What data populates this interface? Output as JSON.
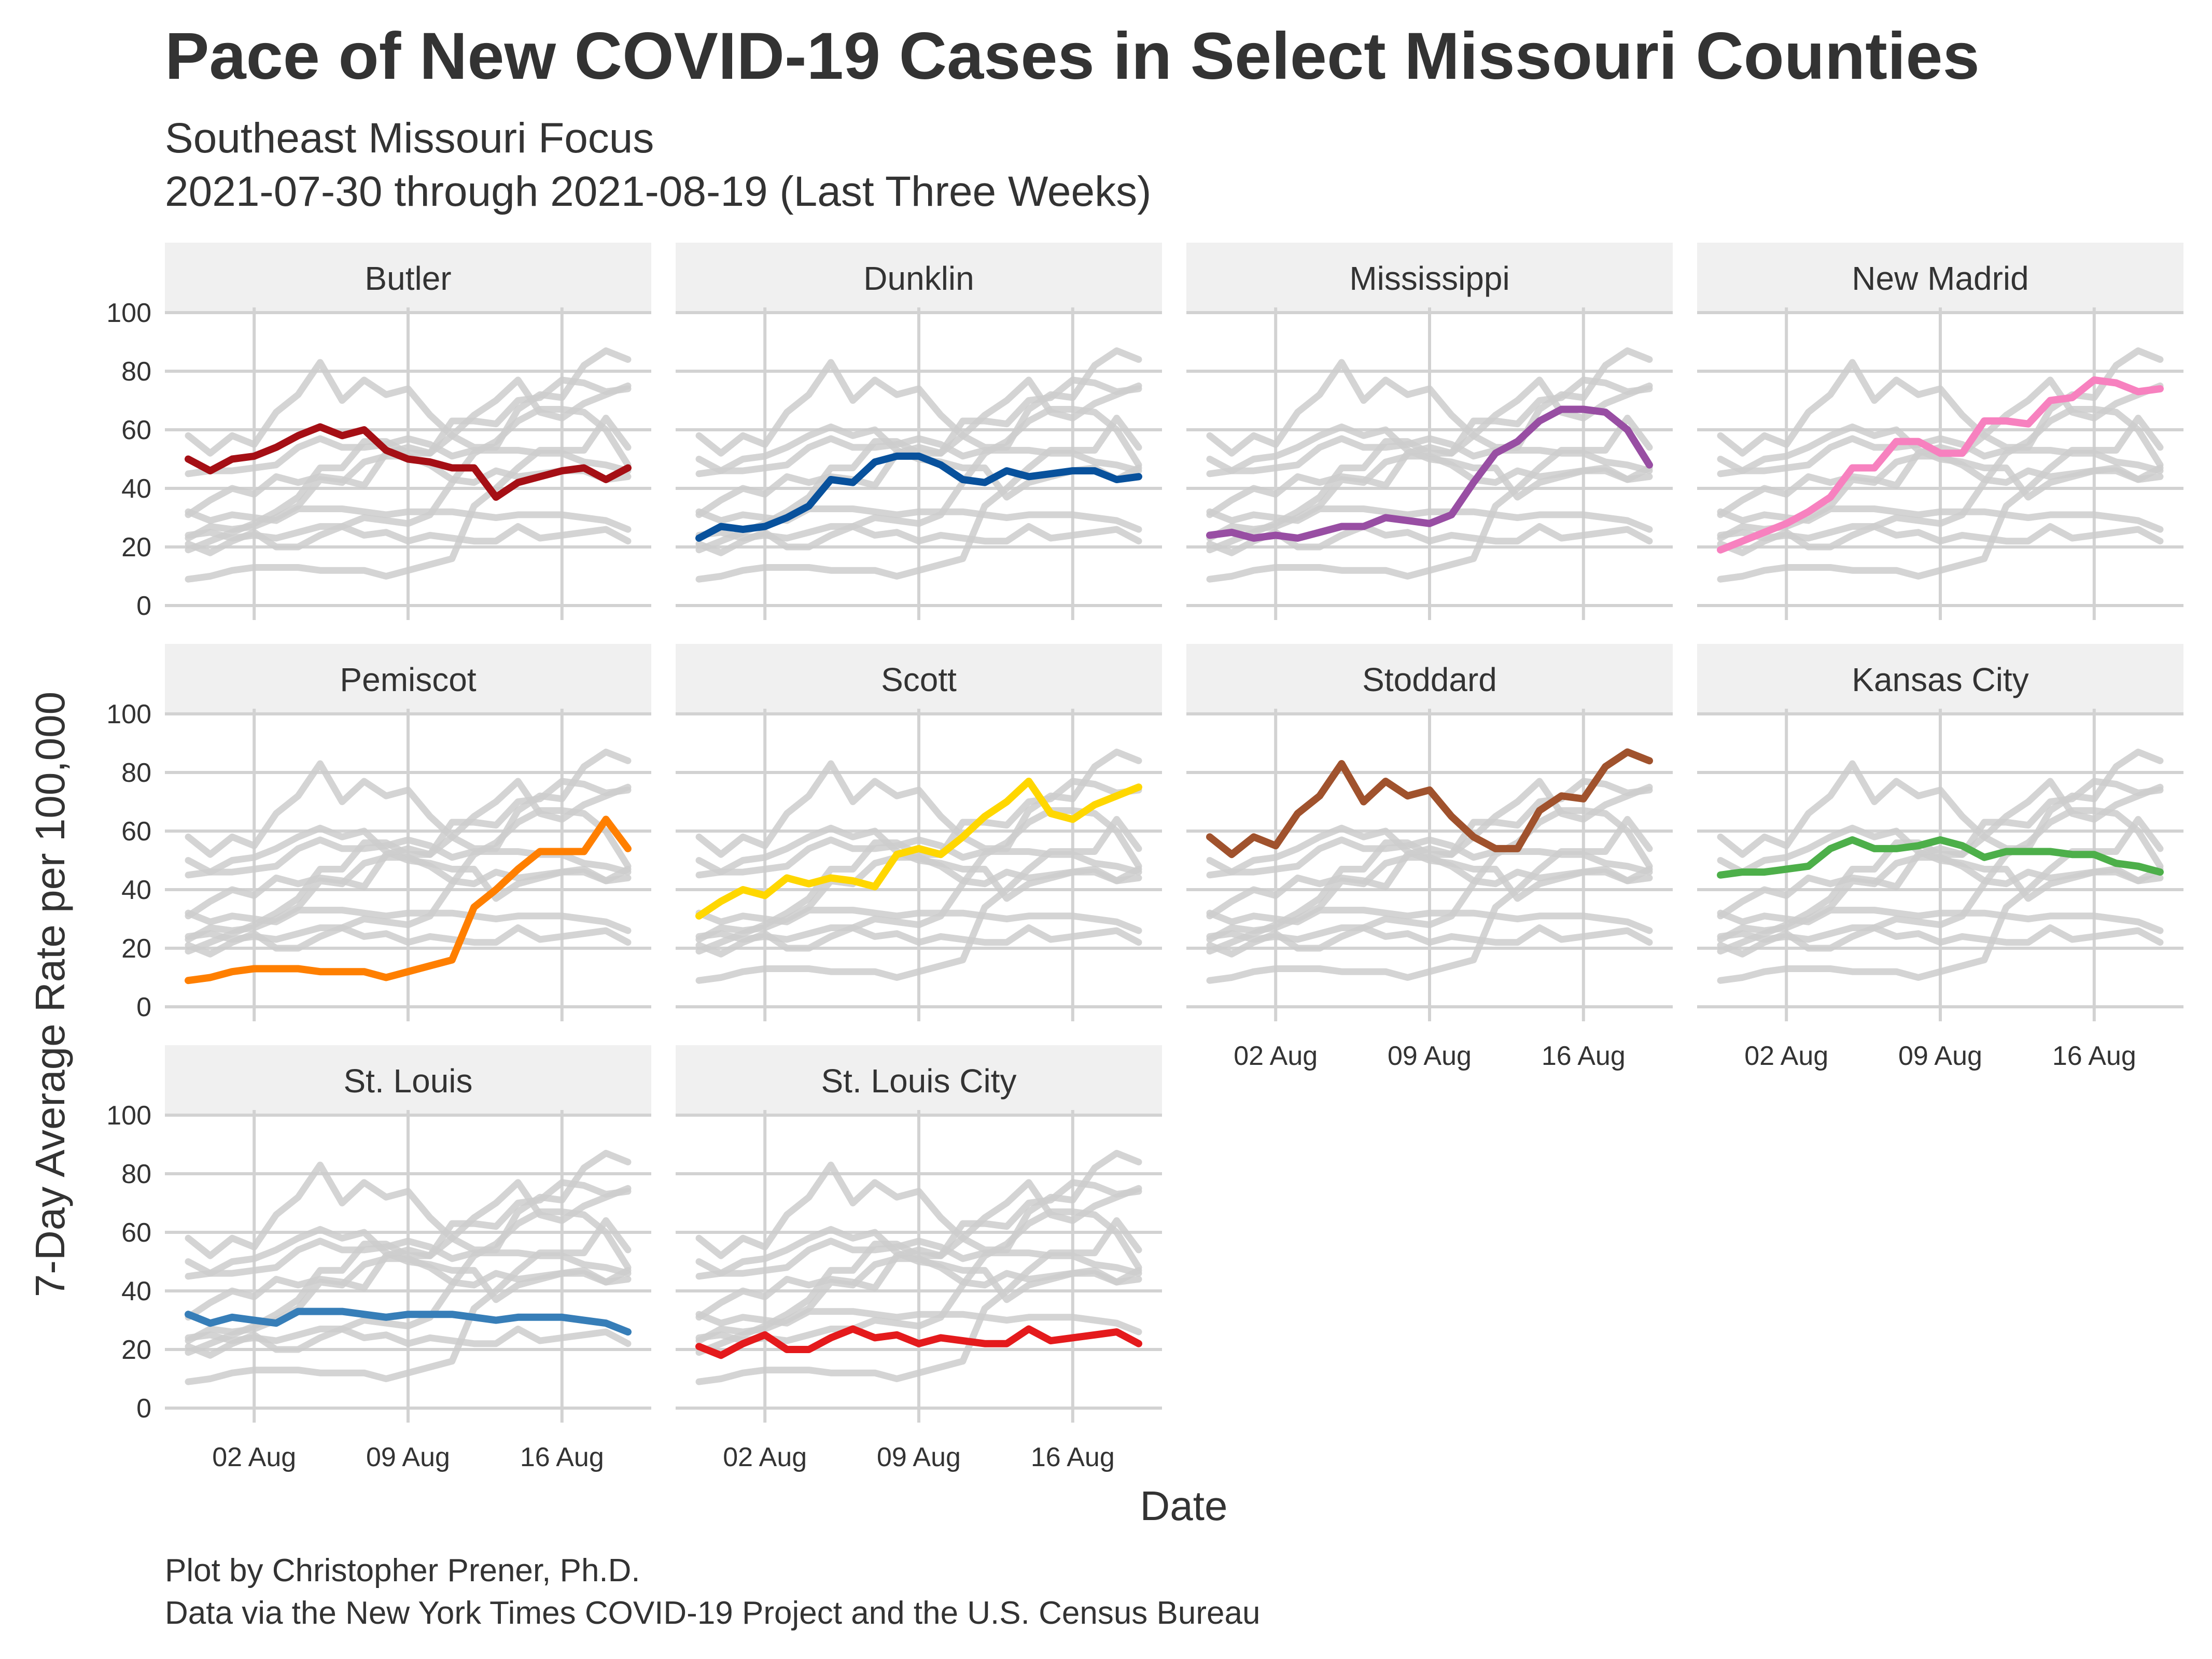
{
  "title": "Pace of New COVID-19 Cases in Select Missouri Counties",
  "subtitle_line1": "Southeast Missouri Focus",
  "subtitle_line2": "2021-07-30 through 2021-08-19 (Last Three Weeks)",
  "caption_line1": "Plot by Christopher Prener, Ph.D.",
  "caption_line2": "Data via the New York Times COVID-19 Project and the U.S. Census Bureau",
  "chart_data": {
    "type": "line",
    "facet_layout": "4 columns x 3 rows",
    "x": [
      "2021-07-30",
      "2021-07-31",
      "2021-08-01",
      "2021-08-02",
      "2021-08-03",
      "2021-08-04",
      "2021-08-05",
      "2021-08-06",
      "2021-08-07",
      "2021-08-08",
      "2021-08-09",
      "2021-08-10",
      "2021-08-11",
      "2021-08-12",
      "2021-08-13",
      "2021-08-14",
      "2021-08-15",
      "2021-08-16",
      "2021-08-17",
      "2021-08-18",
      "2021-08-19"
    ],
    "x_ticks": [
      "2021-08-02",
      "2021-08-09",
      "2021-08-16"
    ],
    "x_tick_labels": [
      "02 Aug",
      "09 Aug",
      "16 Aug"
    ],
    "xlabel": "Date",
    "ylabel": "7-Day Average Rate per 100,000",
    "ylim": [
      0,
      100
    ],
    "y_ticks": [
      0,
      20,
      40,
      60,
      80,
      100
    ],
    "background_series_color": "#cccccc",
    "grid": true,
    "series": [
      {
        "name": "Butler",
        "color": "#a50f15",
        "values": [
          50,
          46,
          50,
          51,
          54,
          58,
          61,
          58,
          60,
          53,
          50,
          49,
          47,
          47,
          37,
          42,
          44,
          46,
          47,
          43,
          47
        ]
      },
      {
        "name": "Dunklin",
        "color": "#08519c",
        "values": [
          23,
          27,
          26,
          27,
          30,
          34,
          43,
          42,
          49,
          51,
          51,
          48,
          43,
          42,
          46,
          44,
          45,
          46,
          46,
          43,
          44
        ]
      },
      {
        "name": "Mississippi",
        "color": "#984ea3",
        "values": [
          24,
          25,
          23,
          24,
          23,
          25,
          27,
          27,
          30,
          29,
          28,
          31,
          42,
          52,
          56,
          63,
          67,
          67,
          66,
          60,
          48
        ]
      },
      {
        "name": "New Madrid",
        "color": "#f781bf",
        "values": [
          19,
          22,
          25,
          28,
          32,
          37,
          47,
          47,
          56,
          56,
          52,
          52,
          63,
          63,
          62,
          70,
          71,
          77,
          76,
          73,
          74
        ]
      },
      {
        "name": "Pemiscot",
        "color": "#ff7f00",
        "values": [
          9,
          10,
          12,
          13,
          13,
          13,
          12,
          12,
          12,
          10,
          12,
          14,
          16,
          34,
          40,
          47,
          53,
          53,
          53,
          64,
          54
        ]
      },
      {
        "name": "Scott",
        "color": "#ffd700",
        "values": [
          31,
          36,
          40,
          38,
          44,
          42,
          44,
          43,
          41,
          52,
          54,
          52,
          58,
          65,
          70,
          77,
          66,
          64,
          69,
          72,
          75
        ]
      },
      {
        "name": "Stoddard",
        "color": "#a0522d",
        "values": [
          58,
          52,
          58,
          55,
          66,
          72,
          83,
          70,
          77,
          72,
          74,
          65,
          58,
          54,
          54,
          67,
          72,
          71,
          82,
          87,
          84
        ]
      },
      {
        "name": "Kansas City",
        "color": "#4daf4a",
        "values": [
          45,
          46,
          46,
          47,
          48,
          54,
          57,
          54,
          54,
          55,
          57,
          55,
          51,
          53,
          53,
          53,
          52,
          52,
          49,
          48,
          46
        ]
      },
      {
        "name": "St. Louis",
        "color": "#377eb8",
        "values": [
          32,
          29,
          31,
          30,
          29,
          33,
          33,
          33,
          32,
          31,
          32,
          32,
          32,
          31,
          30,
          31,
          31,
          31,
          30,
          29,
          26
        ]
      },
      {
        "name": "St. Louis City",
        "color": "#e41a1c",
        "values": [
          21,
          18,
          22,
          25,
          20,
          20,
          24,
          27,
          24,
          25,
          22,
          24,
          23,
          22,
          22,
          27,
          23,
          24,
          25,
          26,
          22
        ]
      }
    ]
  }
}
